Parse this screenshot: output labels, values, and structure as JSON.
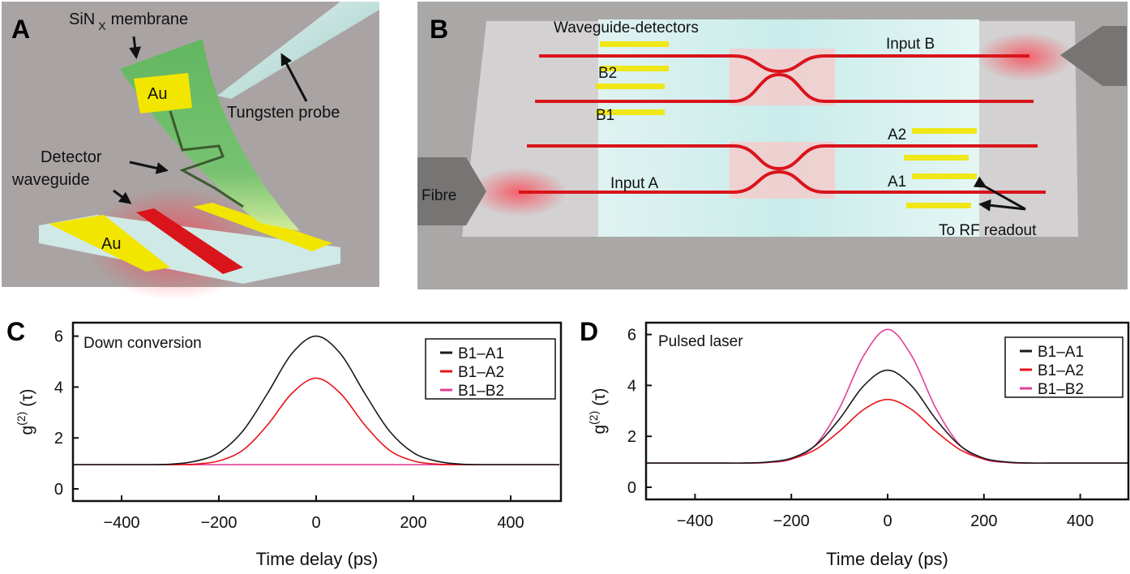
{
  "panel_a": {
    "letter": "A",
    "membrane_label_main": "SiN",
    "membrane_label_sub": "X",
    "membrane_label_rest": "membrane",
    "probe_label": "Tungsten probe",
    "detector_label_line1": "Detector",
    "detector_label_line2": "waveguide",
    "au_top": "Au",
    "au_bottom": "Au"
  },
  "panel_b": {
    "letter": "B",
    "detectors_label": "Waveguide-detectors",
    "input_b": "Input B",
    "input_a": "Input A",
    "fibre": "Fibre",
    "b1": "B1",
    "b2": "B2",
    "a1": "A1",
    "a2": "A2",
    "rf_readout": "To RF readout"
  },
  "colors": {
    "B1-A1": "#1a1a1a",
    "B1-A2": "#e8141c",
    "B1-B2": "#e0409a",
    "background_gray": "#a9a6a5",
    "gold": "#f2e600",
    "waveguide_red": "#d9141b",
    "membrane_green": "#6cc46a"
  },
  "chart_data": [
    {
      "panel": "C",
      "type": "line",
      "annotation": "Down conversion",
      "xlabel": "Time delay (ps)",
      "ylabel_main": "g",
      "ylabel_sup": "(2)",
      "ylabel_arg": "(τ)",
      "xlim": [
        -500,
        500
      ],
      "ylim": [
        -0.45,
        6.5
      ],
      "xticks": [
        -400,
        -200,
        0,
        200,
        400
      ],
      "xtick_labels": [
        "−400",
        "−200",
        "0",
        "200",
        "400"
      ],
      "yticks": [
        0,
        2,
        4,
        6
      ],
      "ytick_labels": [
        "0",
        "2",
        "4",
        "6"
      ],
      "grid": false,
      "legend_position": "top-right",
      "x": [
        -500,
        -450,
        -400,
        -350,
        -300,
        -250,
        -200,
        -150,
        -100,
        -50,
        0,
        50,
        100,
        150,
        200,
        250,
        300,
        350,
        400,
        450,
        500
      ],
      "series": [
        {
          "name": "B1–A1",
          "color": "#1a1a1a",
          "values": [
            0.95,
            0.95,
            0.95,
            0.95,
            0.97,
            1.08,
            1.42,
            2.29,
            3.75,
            5.31,
            6.0,
            5.31,
            3.75,
            2.29,
            1.42,
            1.08,
            0.97,
            0.95,
            0.95,
            0.95,
            0.95
          ]
        },
        {
          "name": "B1–A2",
          "color": "#e8141c",
          "values": [
            0.95,
            0.95,
            0.95,
            0.95,
            0.95,
            0.97,
            1.1,
            1.53,
            2.51,
            3.75,
            4.35,
            3.75,
            2.51,
            1.53,
            1.1,
            0.97,
            0.95,
            0.95,
            0.95,
            0.95,
            0.95
          ]
        },
        {
          "name": "B1–B2",
          "color": "#e0409a",
          "values": [
            0.95,
            0.95,
            0.95,
            0.95,
            0.95,
            0.95,
            0.95,
            0.95,
            0.95,
            0.95,
            0.95,
            0.95,
            0.95,
            0.95,
            0.95,
            0.95,
            0.95,
            0.95,
            0.95,
            0.95,
            0.95
          ]
        }
      ]
    },
    {
      "panel": "D",
      "type": "line",
      "annotation": "Pulsed laser",
      "xlabel": "Time delay (ps)",
      "ylabel_main": "g",
      "ylabel_sup": "(2)",
      "ylabel_arg": "(τ)",
      "xlim": [
        -500,
        500
      ],
      "ylim": [
        -0.45,
        6.5
      ],
      "xticks": [
        -400,
        -200,
        0,
        200,
        400
      ],
      "xtick_labels": [
        "−400",
        "−200",
        "0",
        "200",
        "400"
      ],
      "yticks": [
        0,
        2,
        4,
        6
      ],
      "ytick_labels": [
        "0",
        "2",
        "4",
        "6"
      ],
      "grid": false,
      "legend_position": "top-right",
      "x": [
        -500,
        -450,
        -400,
        -350,
        -300,
        -250,
        -200,
        -150,
        -100,
        -50,
        0,
        50,
        100,
        150,
        200,
        250,
        300,
        350,
        400,
        450,
        500
      ],
      "series": [
        {
          "name": "B1–A1",
          "color": "#1a1a1a",
          "values": [
            0.95,
            0.95,
            0.95,
            0.95,
            0.95,
            0.99,
            1.14,
            1.64,
            2.68,
            3.98,
            4.6,
            3.98,
            2.68,
            1.64,
            1.14,
            0.99,
            0.95,
            0.95,
            0.95,
            0.95,
            0.95
          ]
        },
        {
          "name": "B1–A2",
          "color": "#e8141c",
          "values": [
            0.95,
            0.95,
            0.95,
            0.95,
            0.95,
            0.98,
            1.11,
            1.48,
            2.2,
            3.05,
            3.45,
            3.05,
            2.2,
            1.48,
            1.11,
            0.98,
            0.95,
            0.95,
            0.95,
            0.95,
            0.95
          ]
        },
        {
          "name": "B1–B2",
          "color": "#e0409a",
          "values": [
            0.95,
            0.95,
            0.95,
            0.95,
            0.95,
            0.97,
            1.1,
            1.66,
            3.11,
            5.16,
            6.2,
            5.16,
            3.11,
            1.66,
            1.1,
            0.97,
            0.95,
            0.95,
            0.95,
            0.95,
            0.95
          ]
        }
      ]
    }
  ]
}
